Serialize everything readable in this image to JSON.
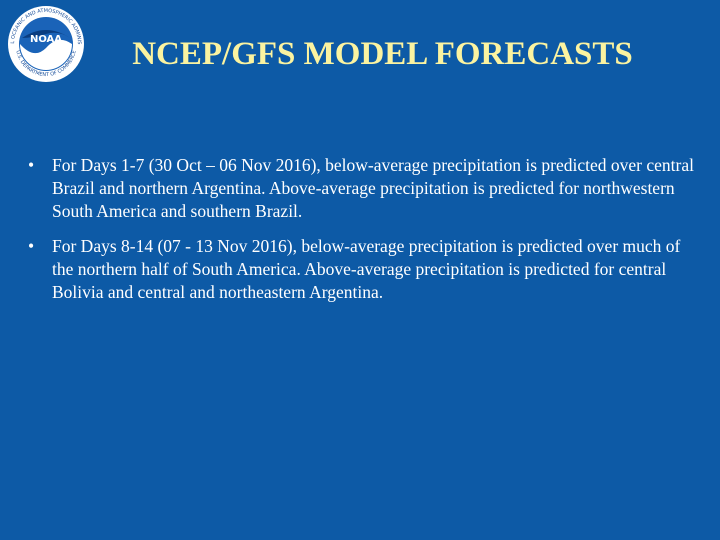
{
  "logo": {
    "label": "NOAA",
    "ring_top": "NATIONAL OCEANIC AND ATMOSPHERIC ADMINISTRATION",
    "ring_bottom": "U.S. DEPARTMENT OF COMMERCE"
  },
  "header": {
    "title": "NCEP/GFS MODEL FORECASTS"
  },
  "bullets": [
    "For Days 1-7 (30 Oct – 06 Nov 2016), below-average precipitation is predicted over central Brazil and northern Argentina. Above-average precipitation is predicted for northwestern South America and southern Brazil.",
    "For Days 8-14 (07 - 13 Nov 2016), below-average precipitation is predicted over much of the northern half of South America.  Above-average precipitation is predicted for central Bolivia and central and northeastern Argentina."
  ]
}
